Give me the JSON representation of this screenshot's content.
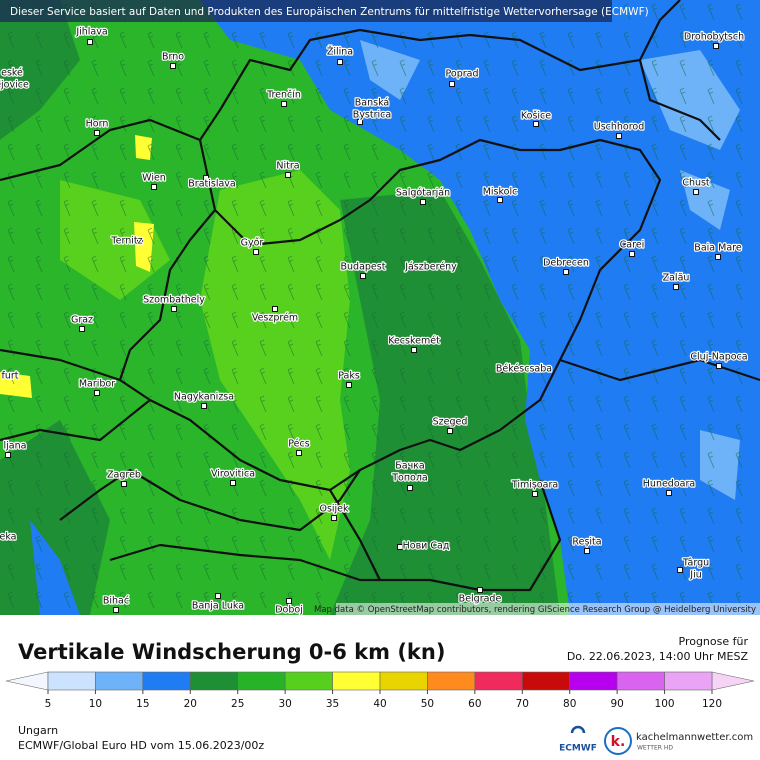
{
  "header": {
    "notice": "Dieser Service basiert auf Daten und Produkten des Europäischen Zentrums für mittelfristige Wettervorhersage (ECMWF)",
    "attribution": "Map data © OpenStreetMap contributors, rendering GIScience Research Group @ Heidelberg University"
  },
  "map": {
    "places": [
      [
        "Jihlava"
      ],
      [
        "Brno"
      ],
      [
        "Žilina"
      ],
      [
        "Poprad"
      ],
      [
        "Drohobytsch"
      ],
      [
        "eské",
        "ějovice"
      ],
      [
        "Trenčín"
      ],
      [
        "Banská",
        "Bystrica"
      ],
      [
        "Košice"
      ],
      [
        "Uschhorod"
      ],
      [
        "Horn"
      ],
      [
        "Nitra"
      ],
      [
        "Wien"
      ],
      [
        "Bratislava"
      ],
      [
        "Salgótarján"
      ],
      [
        "Miskolc"
      ],
      [
        "Chust"
      ],
      [
        "Ternitz"
      ],
      [
        "Győr"
      ],
      [
        "Carei"
      ],
      [
        "Baia Mare"
      ],
      [
        "Budapest"
      ],
      [
        "Jászberény"
      ],
      [
        "Debrecen"
      ],
      [
        "Szombathely"
      ],
      [
        "Zalău"
      ],
      [
        "Graz"
      ],
      [
        "Veszprém"
      ],
      [
        "Kecskemét"
      ],
      [
        "Cluj-Napoca"
      ],
      [
        "furt"
      ],
      [
        "Maribor"
      ],
      [
        "Paks"
      ],
      [
        "Békéscsaba"
      ],
      [
        "Nagykanizsa"
      ],
      [
        "Szeged"
      ],
      [
        "ljana"
      ],
      [
        "Pécs"
      ],
      [
        "Бачка",
        "Топола"
      ],
      [
        "Zagreb"
      ],
      [
        "Virovitica"
      ],
      [
        "Timișoara"
      ],
      [
        "Hunedoara"
      ],
      [
        "Osijek"
      ],
      [
        "Нови Сад"
      ],
      [
        "Reșita"
      ],
      [
        "eka"
      ],
      [
        "Târgu",
        "Jiu"
      ],
      [
        "Bihać"
      ],
      [
        "Banja Luka"
      ],
      [
        "Doboj"
      ],
      [
        "Belgrade"
      ]
    ]
  },
  "title": "Vertikale Windscherung 0-6 km (kn)",
  "forecast": {
    "label": "Prognose für",
    "time": "Do. 22.06.2023, 14:00 Uhr MESZ"
  },
  "legend": {
    "ticks": [
      5,
      10,
      15,
      20,
      25,
      30,
      35,
      40,
      50,
      60,
      70,
      80,
      90,
      100,
      120
    ],
    "colors": [
      "#cce3ff",
      "#6eb2f7",
      "#1f7cf2",
      "#1f8f35",
      "#27b327",
      "#56d01d",
      "#ffff33",
      "#e8d500",
      "#ff8a1e",
      "#f02a5c",
      "#c80a0a",
      "#b700ee",
      "#d964f0",
      "#eaa4f6"
    ],
    "below_color": "#f4f6ff",
    "above_color": "#f6d4f6"
  },
  "footer": {
    "region": "Ungarn",
    "model": "ECMWF/Global Euro HD vom  15.06.2023/00z"
  },
  "logos": {
    "ecmwf": "ECMWF",
    "site": "kachelmannwetter.com",
    "site_sub": "WETTER HD"
  }
}
